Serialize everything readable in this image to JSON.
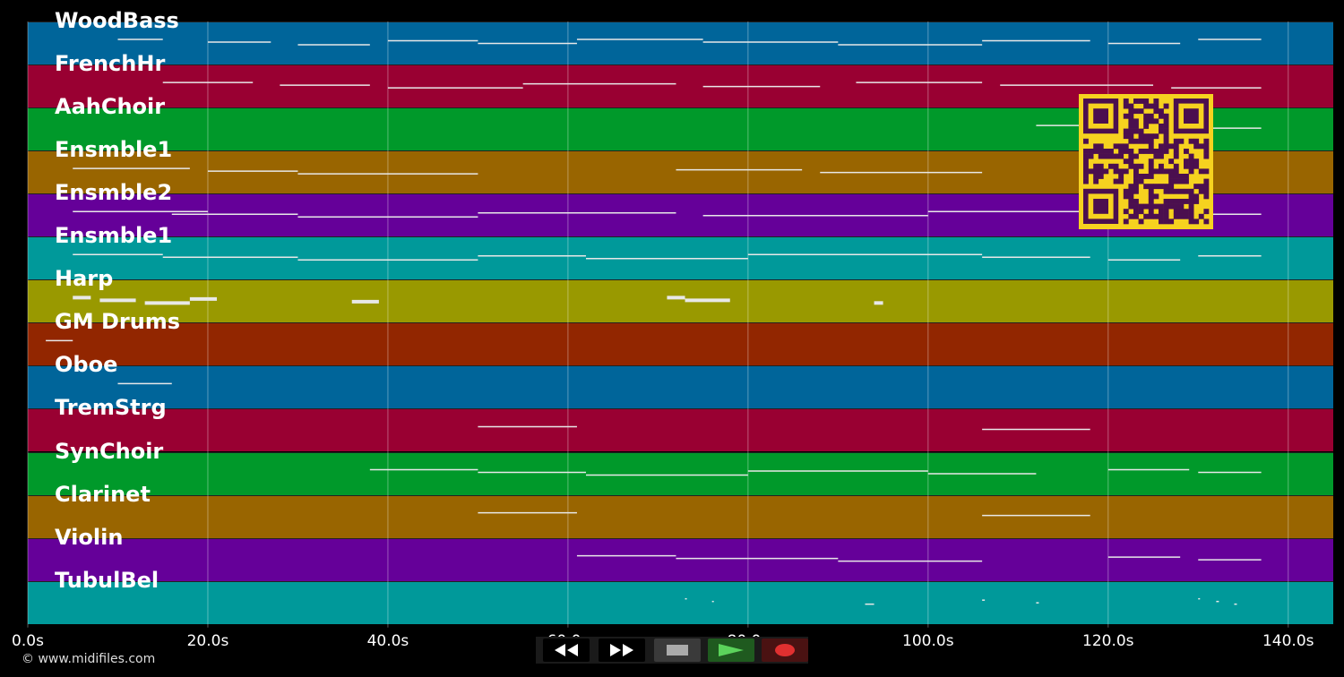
{
  "tracks": [
    {
      "name": "WoodBass",
      "color": "#00659a"
    },
    {
      "name": "FrenchHr",
      "color": "#990032"
    },
    {
      "name": "AahChoir",
      "color": "#00992a"
    },
    {
      "name": "Ensmble1",
      "color": "#996500"
    },
    {
      "name": "Ensmble2",
      "color": "#650099"
    },
    {
      "name": "Ensmble1",
      "color": "#00999a"
    },
    {
      "name": "Harp",
      "color": "#999900"
    },
    {
      "name": "GM Drums",
      "color": "#922600"
    },
    {
      "name": "Oboe",
      "color": "#00659a"
    },
    {
      "name": "TremStrg",
      "color": "#990032"
    },
    {
      "name": "SynChoir",
      "color": "#00992a"
    },
    {
      "name": "Clarinet",
      "color": "#996500"
    },
    {
      "name": "Violin",
      "color": "#650099"
    },
    {
      "name": "TubulBel",
      "color": "#00999a"
    }
  ],
  "timeline": {
    "ticks": [
      "0.0s",
      "20.0s",
      "40.0s",
      "60.0s",
      "80.0s",
      "100.0s",
      "120.0s",
      "140.0s"
    ],
    "tick_values": [
      0,
      20,
      40,
      60,
      80,
      100,
      120,
      140
    ],
    "max_seconds": 145
  },
  "transport": {
    "buttons": [
      {
        "name": "rewind-button",
        "icon": "rewind-icon"
      },
      {
        "name": "fast-forward-button",
        "icon": "fast-forward-icon"
      },
      {
        "name": "stop-button",
        "icon": "stop-icon"
      },
      {
        "name": "play-button",
        "icon": "play-icon"
      },
      {
        "name": "record-button",
        "icon": "record-icon"
      }
    ]
  },
  "copyright": "© www.midifiles.com",
  "note_segments": [
    [
      [
        10,
        15
      ],
      [
        20,
        27
      ],
      [
        30,
        38
      ],
      [
        40,
        50
      ],
      [
        50,
        61
      ],
      [
        61,
        75
      ],
      [
        75,
        90
      ],
      [
        90,
        106
      ],
      [
        106,
        118
      ],
      [
        120,
        128
      ],
      [
        130,
        137
      ]
    ],
    [
      [
        15,
        25
      ],
      [
        28,
        38
      ],
      [
        40,
        55
      ],
      [
        55,
        72
      ],
      [
        75,
        88
      ],
      [
        92,
        106
      ],
      [
        108,
        125
      ],
      [
        127,
        137
      ]
    ],
    [
      [
        112,
        120
      ],
      [
        130,
        137
      ]
    ],
    [
      [
        5,
        18
      ],
      [
        20,
        30
      ],
      [
        30,
        50
      ],
      [
        72,
        86
      ],
      [
        88,
        106
      ]
    ],
    [
      [
        5,
        20
      ],
      [
        16,
        30
      ],
      [
        30,
        50
      ],
      [
        50,
        72
      ],
      [
        75,
        100
      ],
      [
        100,
        118
      ],
      [
        118,
        137
      ]
    ],
    [
      [
        5,
        15
      ],
      [
        15,
        30
      ],
      [
        30,
        50
      ],
      [
        50,
        62
      ],
      [
        62,
        80
      ],
      [
        80,
        106
      ],
      [
        106,
        118
      ],
      [
        120,
        128
      ],
      [
        130,
        137
      ]
    ],
    [
      [
        5,
        7
      ],
      [
        8,
        12
      ],
      [
        13,
        18
      ],
      [
        18,
        21
      ],
      [
        36,
        39
      ],
      [
        71,
        73
      ],
      [
        73,
        78
      ],
      [
        94,
        95
      ]
    ],
    [
      [
        2,
        5
      ]
    ],
    [
      [
        10,
        16
      ]
    ],
    [
      [
        50,
        61
      ],
      [
        106,
        118
      ]
    ],
    [
      [
        38,
        50
      ],
      [
        50,
        62
      ],
      [
        62,
        80
      ],
      [
        80,
        100
      ],
      [
        100,
        112
      ],
      [
        120,
        129
      ],
      [
        130,
        137
      ]
    ],
    [
      [
        50,
        61
      ],
      [
        106,
        118
      ]
    ],
    [
      [
        61,
        72
      ],
      [
        72,
        90
      ],
      [
        90,
        106
      ],
      [
        120,
        128
      ],
      [
        130,
        137
      ]
    ],
    [
      [
        73,
        73.2
      ],
      [
        76,
        76.2
      ],
      [
        93,
        94
      ],
      [
        106,
        106.3
      ],
      [
        112,
        112.3
      ],
      [
        130,
        130.2
      ],
      [
        132,
        132.3
      ],
      [
        134,
        134.3
      ]
    ]
  ]
}
